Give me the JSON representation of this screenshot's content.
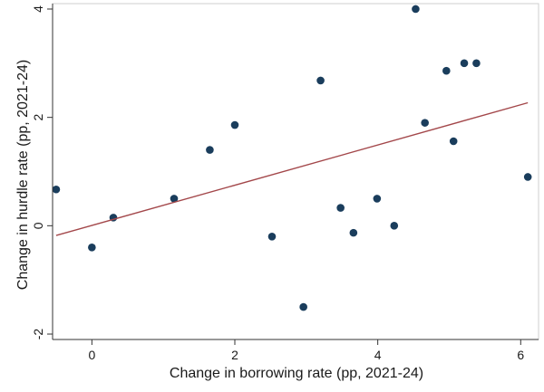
{
  "chart_data": {
    "type": "scatter",
    "title": "",
    "xlabel": "Change in borrowing rate (pp, 2021-24)",
    "ylabel": "Change in hurdle rate (pp, 2021-24)",
    "xlim": [
      -0.55,
      6.25
    ],
    "ylim": [
      -2.1,
      4.1
    ],
    "xticks": [
      0,
      2,
      4,
      6
    ],
    "xtick_labels": [
      "0",
      "2",
      "4",
      "6"
    ],
    "yticks": [
      -2,
      0,
      2,
      4
    ],
    "ytick_labels": [
      "-2",
      "0",
      "2",
      "4"
    ],
    "grid": false,
    "legend": "none",
    "series": [
      {
        "type": "scatter",
        "color": "#1a3d5c",
        "points": [
          {
            "x": -0.5,
            "y": 0.67
          },
          {
            "x": 0.0,
            "y": -0.4
          },
          {
            "x": 0.3,
            "y": 0.15
          },
          {
            "x": 1.15,
            "y": 0.5
          },
          {
            "x": 1.65,
            "y": 1.4
          },
          {
            "x": 2.0,
            "y": 1.86
          },
          {
            "x": 2.52,
            "y": -0.2
          },
          {
            "x": 2.96,
            "y": -1.5
          },
          {
            "x": 3.2,
            "y": 2.68
          },
          {
            "x": 3.48,
            "y": 0.33
          },
          {
            "x": 3.66,
            "y": -0.13
          },
          {
            "x": 3.99,
            "y": 0.5
          },
          {
            "x": 4.23,
            "y": 0.0
          },
          {
            "x": 4.53,
            "y": 4.0
          },
          {
            "x": 4.66,
            "y": 1.9
          },
          {
            "x": 4.96,
            "y": 2.86
          },
          {
            "x": 5.06,
            "y": 1.56
          },
          {
            "x": 5.21,
            "y": 3.0
          },
          {
            "x": 5.38,
            "y": 3.0
          },
          {
            "x": 6.1,
            "y": 0.9
          }
        ]
      },
      {
        "type": "line",
        "color": "#a3474a",
        "fit": "linear",
        "points": [
          {
            "x": -0.5,
            "y": -0.18
          },
          {
            "x": 6.1,
            "y": 2.27
          }
        ]
      }
    ]
  }
}
